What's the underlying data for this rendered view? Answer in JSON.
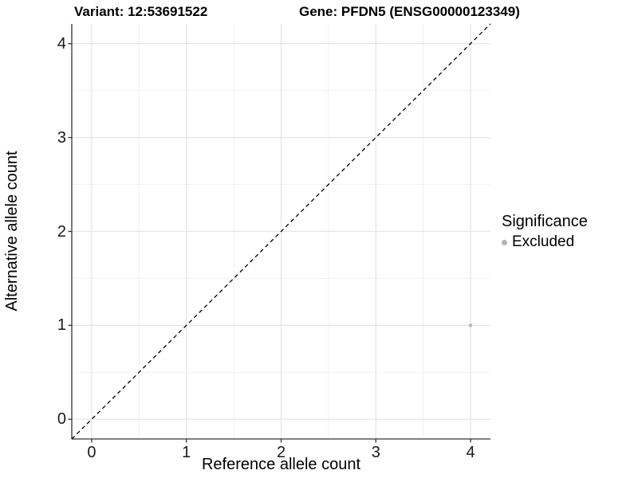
{
  "titles": {
    "variant": "Variant: 12:53691522",
    "gene": "Gene: PFDN5 (ENSG00000123349)"
  },
  "legend": {
    "title": "Significance",
    "items": [
      {
        "label": "Excluded",
        "color": "#b3b3b3"
      }
    ]
  },
  "colors": {
    "background": "#ffffff",
    "grid_major": "#e4e4e4",
    "grid_minor": "#f1f1f1",
    "axis_line": "#333333",
    "tick_mark": "#333333",
    "identity_line": "#000000",
    "point": "#b9b9b9",
    "text": "#000000"
  },
  "chart_data": {
    "type": "scatter",
    "title": "Variant: 12:53691522 | Gene: PFDN5 (ENSG00000123349)",
    "xlabel": "Reference allele count",
    "ylabel": "Alternative allele count",
    "xlim": [
      -0.21,
      4.21
    ],
    "ylim": [
      -0.21,
      4.21
    ],
    "x_ticks": [
      0,
      1,
      2,
      3,
      4
    ],
    "y_ticks": [
      0,
      1,
      2,
      3,
      4
    ],
    "x_minor_ticks": [
      0.5,
      1.5,
      2.5,
      3.5
    ],
    "y_minor_ticks": [
      0.5,
      1.5,
      2.5,
      3.5
    ],
    "grid": "major+minor",
    "legend_position": "right",
    "reference_line": {
      "kind": "identity",
      "equation": "y = x",
      "style": "dashed",
      "color": "#000000"
    },
    "series": [
      {
        "name": "Excluded",
        "color": "#b9b9b9",
        "points": [
          {
            "x": 4,
            "y": 1
          }
        ]
      }
    ]
  }
}
